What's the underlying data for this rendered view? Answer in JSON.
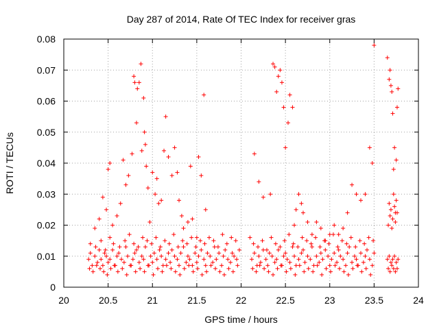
{
  "chart_data": {
    "type": "scatter",
    "title": "Day 287 of 2014, Rate Of TEC Index for receiver gras",
    "xlabel": "GPS time / hours",
    "ylabel": "ROTI / TECUs",
    "xlim": [
      20,
      24
    ],
    "ylim": [
      0,
      0.08
    ],
    "x_ticks": [
      "20",
      "20.5",
      "21",
      "21.5",
      "22",
      "22.5",
      "23",
      "23.5",
      "24"
    ],
    "y_ticks": [
      "0",
      "0.01",
      "0.02",
      "0.03",
      "0.04",
      "0.05",
      "0.06",
      "0.07",
      "0.08"
    ],
    "grid": true,
    "marker": "+",
    "color": "#ff0000",
    "series": [
      {
        "name": "ROTI",
        "x": [
          20.28,
          20.3,
          20.32,
          20.35,
          20.38,
          20.4,
          20.42,
          20.44,
          20.46,
          20.48,
          20.5,
          20.52,
          20.55,
          20.58,
          20.6,
          20.62,
          20.65,
          20.68,
          20.7,
          20.72,
          20.75,
          20.78,
          20.8,
          20.82,
          20.85,
          20.88,
          20.9,
          20.92,
          20.95,
          20.98,
          21.0,
          21.02,
          21.05,
          21.08,
          21.1,
          21.12,
          21.15,
          21.18,
          21.2,
          21.22,
          21.25,
          21.28,
          21.3,
          21.32,
          21.35,
          21.38,
          21.4,
          21.42,
          21.45,
          21.48,
          21.5,
          21.52,
          21.55,
          21.58,
          21.6,
          21.62,
          21.65,
          21.68,
          21.7,
          21.72,
          21.75,
          21.78,
          21.8,
          21.82,
          21.85,
          21.88,
          21.9,
          21.92,
          21.95,
          21.98,
          20.29,
          20.33,
          20.37,
          20.41,
          20.45,
          20.49,
          20.53,
          20.57,
          20.61,
          20.66,
          20.71,
          20.76,
          20.81,
          20.86,
          20.91,
          20.96,
          21.01,
          21.06,
          21.11,
          21.16,
          21.21,
          21.26,
          21.31,
          21.36,
          21.41,
          21.46,
          21.51,
          21.56,
          21.61,
          21.66,
          21.71,
          21.76,
          21.81,
          21.86,
          21.91,
          21.96,
          20.3,
          20.36,
          20.42,
          20.47,
          20.52,
          20.56,
          20.63,
          20.69,
          20.74,
          20.79,
          20.84,
          20.89,
          20.94,
          20.99,
          21.04,
          21.09,
          21.14,
          21.19,
          21.24,
          21.29,
          21.34,
          21.39,
          21.44,
          21.49,
          21.54,
          21.59,
          21.64,
          21.69,
          21.74,
          21.79,
          21.84,
          21.89,
          21.94,
          20.35,
          20.4,
          20.44,
          20.48,
          20.5,
          20.52,
          20.55,
          20.6,
          20.64,
          20.67,
          20.7,
          20.73,
          20.77,
          20.79,
          20.8,
          20.82,
          20.83,
          20.85,
          20.87,
          20.88,
          20.9,
          20.91,
          20.92,
          20.93,
          20.95,
          20.97,
          21.0,
          21.03,
          21.05,
          21.07,
          21.1,
          21.13,
          21.15,
          21.18,
          21.22,
          21.25,
          21.28,
          21.3,
          21.33,
          21.35,
          21.4,
          21.43,
          21.45,
          21.5,
          21.52,
          21.55,
          21.58,
          21.6,
          22.12,
          22.15,
          22.18,
          22.2,
          22.22,
          22.25,
          22.28,
          22.3,
          22.32,
          22.35,
          22.38,
          22.4,
          22.42,
          22.45,
          22.48,
          22.5,
          22.52,
          22.55,
          22.58,
          22.6,
          22.62,
          22.65,
          22.68,
          22.7,
          22.72,
          22.75,
          22.78,
          22.8,
          22.82,
          22.85,
          22.88,
          22.9,
          22.92,
          22.95,
          22.98,
          23.0,
          23.02,
          23.05,
          23.08,
          23.1,
          23.12,
          23.15,
          23.18,
          23.2,
          23.22,
          23.25,
          23.28,
          23.3,
          23.32,
          23.35,
          23.38,
          23.4,
          23.42,
          23.45,
          23.48,
          23.5,
          22.13,
          22.17,
          22.21,
          22.26,
          22.31,
          22.36,
          22.41,
          22.46,
          22.51,
          22.56,
          22.61,
          22.66,
          22.71,
          22.76,
          22.81,
          22.86,
          22.91,
          22.96,
          23.01,
          23.06,
          23.11,
          23.16,
          23.21,
          23.26,
          23.31,
          23.36,
          23.41,
          23.46,
          22.14,
          22.19,
          22.24,
          22.29,
          22.34,
          22.39,
          22.44,
          22.49,
          22.54,
          22.59,
          22.64,
          22.69,
          22.74,
          22.79,
          22.84,
          22.89,
          22.94,
          22.99,
          23.04,
          23.09,
          23.14,
          23.19,
          23.24,
          23.29,
          23.34,
          23.39,
          23.44,
          23.49,
          22.1,
          22.15,
          22.2,
          22.25,
          22.33,
          22.36,
          22.38,
          22.4,
          22.42,
          22.44,
          22.46,
          22.48,
          22.5,
          22.53,
          22.55,
          22.58,
          22.6,
          22.62,
          22.65,
          22.68,
          22.7,
          22.75,
          22.8,
          22.85,
          22.9,
          22.95,
          23.0,
          23.05,
          23.1,
          23.15,
          23.2,
          23.25,
          23.3,
          23.35,
          23.4,
          23.45,
          23.48,
          23.5,
          23.65,
          23.67,
          23.68,
          23.69,
          23.7,
          23.71,
          23.72,
          23.73,
          23.74,
          23.75,
          23.76,
          23.77,
          23.65,
          23.67,
          23.69,
          23.71,
          23.73,
          23.75,
          23.77,
          23.66,
          23.68,
          23.7,
          23.72,
          23.74,
          23.76,
          23.66,
          23.67,
          23.68,
          23.69,
          23.7,
          23.71,
          23.72,
          23.73,
          23.74,
          23.75,
          23.76
        ],
        "y": [
          0.009,
          0.011,
          0.007,
          0.01,
          0.008,
          0.012,
          0.009,
          0.007,
          0.011,
          0.01,
          0.008,
          0.009,
          0.012,
          0.007,
          0.01,
          0.011,
          0.009,
          0.008,
          0.013,
          0.01,
          0.007,
          0.009,
          0.011,
          0.012,
          0.008,
          0.01,
          0.009,
          0.013,
          0.007,
          0.01,
          0.008,
          0.011,
          0.009,
          0.012,
          0.01,
          0.007,
          0.009,
          0.011,
          0.008,
          0.012,
          0.01,
          0.009,
          0.007,
          0.011,
          0.013,
          0.008,
          0.01,
          0.009,
          0.007,
          0.011,
          0.008,
          0.01,
          0.012,
          0.009,
          0.007,
          0.011,
          0.01,
          0.008,
          0.013,
          0.009,
          0.011,
          0.007,
          0.01,
          0.012,
          0.009,
          0.008,
          0.011,
          0.01,
          0.009,
          0.012,
          0.006,
          0.005,
          0.007,
          0.006,
          0.005,
          0.004,
          0.006,
          0.007,
          0.005,
          0.006,
          0.004,
          0.007,
          0.005,
          0.006,
          0.005,
          0.007,
          0.004,
          0.006,
          0.005,
          0.007,
          0.006,
          0.005,
          0.004,
          0.006,
          0.007,
          0.005,
          0.006,
          0.004,
          0.005,
          0.007,
          0.006,
          0.005,
          0.004,
          0.006,
          0.005,
          0.007,
          0.014,
          0.013,
          0.015,
          0.012,
          0.016,
          0.014,
          0.013,
          0.015,
          0.017,
          0.014,
          0.013,
          0.016,
          0.015,
          0.014,
          0.016,
          0.013,
          0.015,
          0.014,
          0.017,
          0.013,
          0.015,
          0.014,
          0.016,
          0.013,
          0.015,
          0.014,
          0.016,
          0.015,
          0.013,
          0.017,
          0.014,
          0.016,
          0.015,
          0.019,
          0.022,
          0.029,
          0.025,
          0.038,
          0.04,
          0.02,
          0.023,
          0.027,
          0.041,
          0.033,
          0.036,
          0.043,
          0.068,
          0.066,
          0.053,
          0.064,
          0.066,
          0.072,
          0.044,
          0.061,
          0.05,
          0.046,
          0.039,
          0.032,
          0.021,
          0.037,
          0.03,
          0.035,
          0.027,
          0.028,
          0.044,
          0.055,
          0.042,
          0.036,
          0.045,
          0.037,
          0.028,
          0.023,
          0.019,
          0.021,
          0.039,
          0.022,
          0.016,
          0.042,
          0.036,
          0.062,
          0.025,
          0.009,
          0.011,
          0.007,
          0.01,
          0.008,
          0.012,
          0.009,
          0.007,
          0.011,
          0.01,
          0.008,
          0.009,
          0.012,
          0.007,
          0.01,
          0.011,
          0.009,
          0.008,
          0.013,
          0.01,
          0.007,
          0.009,
          0.011,
          0.012,
          0.008,
          0.01,
          0.009,
          0.013,
          0.007,
          0.01,
          0.008,
          0.011,
          0.009,
          0.012,
          0.01,
          0.007,
          0.009,
          0.011,
          0.008,
          0.012,
          0.01,
          0.009,
          0.007,
          0.011,
          0.013,
          0.008,
          0.01,
          0.009,
          0.007,
          0.011,
          0.008,
          0.01,
          0.012,
          0.009,
          0.007,
          0.011,
          0.006,
          0.005,
          0.007,
          0.006,
          0.005,
          0.004,
          0.006,
          0.007,
          0.005,
          0.006,
          0.004,
          0.007,
          0.005,
          0.006,
          0.005,
          0.007,
          0.004,
          0.006,
          0.005,
          0.007,
          0.006,
          0.005,
          0.004,
          0.006,
          0.007,
          0.005,
          0.006,
          0.004,
          0.014,
          0.013,
          0.015,
          0.012,
          0.016,
          0.014,
          0.013,
          0.015,
          0.017,
          0.014,
          0.013,
          0.016,
          0.015,
          0.014,
          0.016,
          0.013,
          0.015,
          0.014,
          0.017,
          0.013,
          0.015,
          0.014,
          0.016,
          0.013,
          0.015,
          0.014,
          0.016,
          0.015,
          0.016,
          0.043,
          0.034,
          0.029,
          0.03,
          0.072,
          0.071,
          0.063,
          0.068,
          0.07,
          0.066,
          0.058,
          0.045,
          0.053,
          0.062,
          0.058,
          0.02,
          0.025,
          0.03,
          0.027,
          0.024,
          0.021,
          0.017,
          0.021,
          0.019,
          0.015,
          0.017,
          0.02,
          0.017,
          0.019,
          0.024,
          0.033,
          0.03,
          0.028,
          0.03,
          0.045,
          0.04,
          0.078,
          0.074,
          0.067,
          0.07,
          0.065,
          0.063,
          0.056,
          0.038,
          0.045,
          0.024,
          0.041,
          0.058,
          0.064,
          0.009,
          0.01,
          0.008,
          0.009,
          0.01,
          0.008,
          0.009,
          0.006,
          0.005,
          0.007,
          0.006,
          0.005,
          0.006,
          0.02,
          0.027,
          0.023,
          0.025,
          0.019,
          0.022,
          0.03,
          0.026,
          0.021,
          0.028,
          0.024
        ]
      }
    ]
  }
}
